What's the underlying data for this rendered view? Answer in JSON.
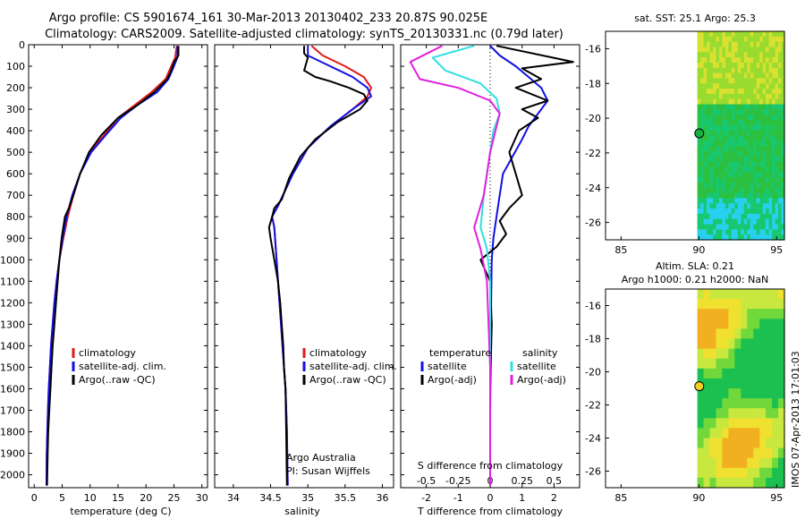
{
  "header": {
    "line1": "Argo profile: CS 5901674_161 30-Mar-2013 20130402_233 20.87S 90.025E",
    "line2": "Climatology: CARS2009. Satellite-adjusted climatology: synTS_20130331.nc (0.79d later)"
  },
  "colors": {
    "climatology": "#e01a1a",
    "satellite": "#1010e6",
    "argo": "#000000",
    "salinity_satellite": "#2fe0e0",
    "salinity_argo": "#e020e0"
  },
  "chart_data": [
    {
      "type": "line",
      "panel": "temperature",
      "xlabel": "temperature (deg C)",
      "ylabel": "",
      "xlim": [
        -1,
        31
      ],
      "ylim": [
        2060,
        0
      ],
      "xticks": [
        0,
        5,
        10,
        15,
        20,
        25,
        30
      ],
      "yticks": [
        0,
        100,
        200,
        300,
        400,
        500,
        600,
        700,
        800,
        900,
        1000,
        1100,
        1200,
        1300,
        1400,
        1500,
        1600,
        1700,
        1800,
        1900,
        2000
      ],
      "legend": [
        "climatology",
        "satellite-adj. clim.",
        "Argo(..raw -QC)"
      ],
      "series": [
        {
          "name": "climatology",
          "color": "red",
          "x": [
            25.5,
            25.2,
            24.5,
            23.5,
            21.0,
            18.0,
            15.0,
            12.5,
            10.0,
            8.2,
            7.0,
            6.0,
            5.2,
            4.5,
            4.0,
            3.6,
            3.3,
            3.0,
            2.8,
            2.6,
            2.45,
            2.35,
            2.25,
            2.2
          ],
          "y": [
            5,
            60,
            100,
            160,
            220,
            280,
            340,
            420,
            500,
            600,
            700,
            800,
            900,
            1000,
            1100,
            1200,
            1300,
            1400,
            1500,
            1600,
            1700,
            1800,
            1900,
            2050
          ]
        },
        {
          "name": "satellite-adj. clim.",
          "color": "blue",
          "x": [
            25.6,
            25.6,
            25.0,
            24.0,
            22.0,
            18.5,
            15.5,
            12.8,
            10.2,
            8.2,
            6.8,
            5.8,
            5.1,
            4.5,
            4.0,
            3.6,
            3.3,
            3.0,
            2.8,
            2.6,
            2.45,
            2.35,
            2.25,
            2.2
          ],
          "y": [
            5,
            60,
            100,
            160,
            220,
            280,
            340,
            420,
            500,
            600,
            700,
            800,
            900,
            1000,
            1100,
            1200,
            1300,
            1400,
            1500,
            1600,
            1700,
            1800,
            1900,
            2050
          ]
        },
        {
          "name": "Argo(..raw -QC)",
          "color": "black",
          "x": [
            25.8,
            25.8,
            25.0,
            24.5,
            23.8,
            21.5,
            18.5,
            15.0,
            12.0,
            9.8,
            8.2,
            7.0,
            6.2,
            5.5,
            4.9,
            4.5,
            4.2,
            3.9,
            3.6,
            3.3,
            3.1,
            2.9,
            2.7,
            2.5,
            2.4,
            2.3
          ],
          "y": [
            5,
            50,
            80,
            120,
            160,
            220,
            280,
            340,
            420,
            500,
            600,
            700,
            760,
            800,
            900,
            1000,
            1100,
            1200,
            1300,
            1400,
            1500,
            1600,
            1700,
            1800,
            1900,
            2050
          ]
        }
      ]
    },
    {
      "type": "line",
      "panel": "salinity",
      "xlabel": "salinity",
      "ylabel": "",
      "xlim": [
        33.75,
        36.15
      ],
      "ylim": [
        2060,
        0
      ],
      "xticks": [
        34,
        34.5,
        35,
        35.5,
        36
      ],
      "xticklabels": [
        "34",
        "34.5",
        "35",
        "35.5",
        "36"
      ],
      "legend": [
        "climatology",
        "satellite-adj. clim.",
        "Argo(..raw -QC)"
      ],
      "annotation": [
        "Argo Australia",
        "PI: Susan Wijffels"
      ],
      "series": [
        {
          "name": "climatology",
          "color": "red",
          "x": [
            35.05,
            35.2,
            35.5,
            35.75,
            35.85,
            35.8,
            35.6,
            35.3,
            35.0,
            34.8,
            34.6,
            34.52,
            34.55,
            34.58,
            34.6,
            34.62,
            34.64,
            34.66,
            34.68,
            34.7,
            34.71,
            34.72,
            34.73
          ],
          "y": [
            5,
            50,
            100,
            150,
            200,
            240,
            300,
            380,
            480,
            600,
            750,
            800,
            850,
            1000,
            1100,
            1200,
            1300,
            1400,
            1500,
            1600,
            1700,
            1800,
            2050
          ]
        },
        {
          "name": "satellite-adj. clim.",
          "color": "blue",
          "x": [
            35.0,
            35.0,
            35.3,
            35.6,
            35.8,
            35.85,
            35.6,
            35.3,
            35.0,
            34.8,
            34.6,
            34.52,
            34.55,
            34.58,
            34.6,
            34.62,
            34.64,
            34.66,
            34.68,
            34.7,
            34.71,
            34.72,
            34.73
          ],
          "y": [
            5,
            50,
            100,
            150,
            200,
            240,
            300,
            380,
            480,
            600,
            750,
            800,
            850,
            1000,
            1100,
            1200,
            1300,
            1400,
            1500,
            1600,
            1700,
            1800,
            2050
          ]
        },
        {
          "name": "Argo(..raw -QC)",
          "color": "black",
          "x": [
            34.95,
            34.95,
            35.0,
            34.95,
            35.1,
            35.3,
            35.55,
            35.75,
            35.8,
            35.7,
            35.4,
            35.1,
            34.9,
            34.75,
            34.65,
            34.55,
            34.52,
            34.48,
            34.5,
            34.55,
            34.6,
            34.63,
            34.65,
            34.67,
            34.68,
            34.7,
            34.71,
            34.72
          ],
          "y": [
            5,
            40,
            60,
            120,
            150,
            170,
            200,
            230,
            260,
            300,
            360,
            440,
            520,
            620,
            720,
            760,
            800,
            850,
            900,
            1000,
            1100,
            1200,
            1300,
            1400,
            1500,
            1600,
            1800,
            2050
          ]
        }
      ]
    },
    {
      "type": "line",
      "panel": "difference",
      "xlabel": "T difference from climatology",
      "xlabel_top": "S difference from climatology",
      "xlim": [
        -2.8,
        2.8
      ],
      "ylim": [
        2060,
        0
      ],
      "xticks": [
        -2,
        -1,
        0,
        1,
        2
      ],
      "xticklabels": [
        "-2",
        "-1",
        "0",
        "1",
        "2"
      ],
      "sticks": [
        -0.5,
        -0.25,
        0,
        0.25,
        0.5
      ],
      "sticklabels": [
        "-0.5",
        "-0.25",
        "0",
        "0.25",
        "0.5"
      ],
      "legend_left": [
        "temperature",
        "satellite",
        "Argo(-adj)"
      ],
      "legend_right": [
        "salinity",
        "satellite",
        "Argo(-adj)"
      ],
      "series": [
        {
          "name": "temperature satellite",
          "color": "blue",
          "x": [
            0.0,
            0.3,
            0.8,
            1.2,
            1.6,
            1.8,
            1.5,
            1.2,
            1.0,
            0.7,
            0.4,
            0.3,
            0.2,
            0.1,
            0.05,
            0.03,
            0.02,
            0.0,
            0.0
          ],
          "y": [
            5,
            50,
            100,
            150,
            200,
            260,
            320,
            380,
            440,
            520,
            600,
            700,
            800,
            900,
            1000,
            1200,
            1400,
            1700,
            2050
          ]
        },
        {
          "name": "temperature Argo",
          "color": "black",
          "x": [
            0.2,
            2.6,
            1.0,
            1.6,
            0.8,
            1.8,
            1.0,
            1.5,
            0.9,
            0.6,
            0.8,
            1.0,
            0.6,
            0.3,
            0.5,
            0.2,
            -0.3,
            0.0,
            0.05,
            0.0,
            0.0
          ],
          "y": [
            5,
            80,
            110,
            160,
            200,
            260,
            300,
            340,
            400,
            500,
            600,
            700,
            760,
            820,
            880,
            940,
            1000,
            1100,
            1300,
            1600,
            2050
          ]
        },
        {
          "name": "salinity satellite",
          "color": "cyan",
          "x": [
            -0.5,
            -1.8,
            -1.4,
            -0.3,
            0.2,
            0.3,
            0.1,
            0.0,
            -0.2,
            -0.3,
            -0.1,
            0.0,
            0.0,
            0.0
          ],
          "y": [
            5,
            60,
            120,
            180,
            250,
            320,
            400,
            500,
            700,
            850,
            950,
            1100,
            1500,
            2050
          ]
        },
        {
          "name": "salinity Argo",
          "color": "magenta",
          "x": [
            -1.5,
            -2.5,
            -2.2,
            -1.0,
            0.0,
            0.3,
            0.0,
            -0.2,
            -0.5,
            -0.3,
            -0.1,
            0.0,
            0.0
          ],
          "y": [
            5,
            80,
            160,
            200,
            260,
            320,
            500,
            700,
            850,
            950,
            1100,
            1500,
            2050
          ]
        }
      ]
    },
    {
      "type": "heatmap",
      "panel": "sst",
      "title": "sat. SST: 25.1 Argo: 25.3",
      "xlim": [
        84,
        95.5
      ],
      "ylim": [
        -27,
        -15
      ],
      "xticks": [
        85,
        90,
        95
      ],
      "yticks": [
        -16,
        -18,
        -20,
        -22,
        -24,
        -26
      ],
      "marker": {
        "lon": 90.025,
        "lat": -20.87
      },
      "data_extent_lon": [
        89.9,
        95.5
      ],
      "palette": [
        "#28d0f0",
        "#18c870",
        "#2cc040",
        "#9adb30",
        "#d8e030",
        "#f0c830"
      ]
    },
    {
      "type": "heatmap",
      "panel": "sla",
      "title": "Altim. SLA: 0.21",
      "subtitle": "Argo h1000: 0.21 h2000: NaN",
      "xlim": [
        84,
        95.5
      ],
      "ylim": [
        -27,
        -15
      ],
      "xticks": [
        85,
        90,
        95
      ],
      "yticks": [
        -16,
        -18,
        -20,
        -22,
        -24,
        -26
      ],
      "marker": {
        "lon": 90.025,
        "lat": -20.87
      },
      "data_extent_lon": [
        89.9,
        95.5
      ],
      "palette": [
        "#1cc050",
        "#70d83a",
        "#c8e840",
        "#f0e030",
        "#f0b020",
        "#e88020"
      ]
    }
  ],
  "footer_stamp": "IMOS 07-Apr-2013 17:01:03"
}
